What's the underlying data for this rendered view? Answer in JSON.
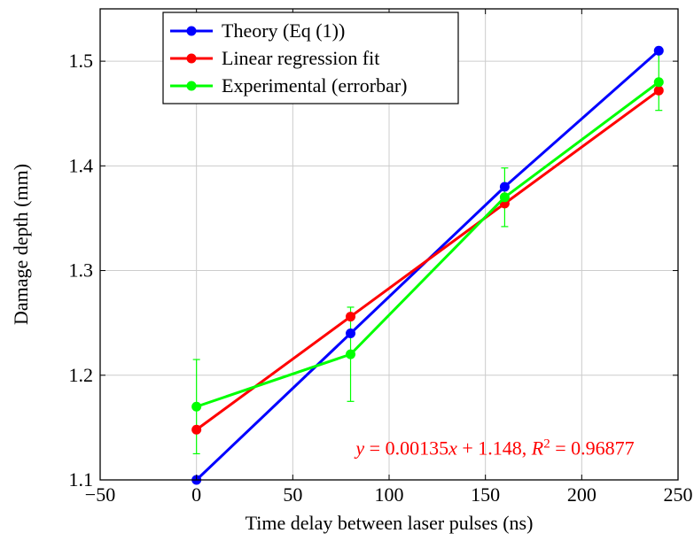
{
  "chart_data": {
    "type": "line",
    "xlabel": "Time delay between laser pulses (ns)",
    "ylabel": "Damage depth (mm)",
    "xlim": [
      -50,
      250
    ],
    "ylim": [
      1.1,
      1.55
    ],
    "xticks": [
      -50,
      0,
      50,
      100,
      150,
      200,
      250
    ],
    "yticks": [
      1.1,
      1.2,
      1.3,
      1.4,
      1.5
    ],
    "xtick_labels": [
      "−50",
      "0",
      "50",
      "100",
      "150",
      "200",
      "250"
    ],
    "ytick_labels": [
      "1.1",
      "1.2",
      "1.3",
      "1.4",
      "1.5"
    ],
    "grid": true,
    "legend_position": "top-left",
    "series": [
      {
        "name": "Theory (Eq (1))",
        "color": "#0000ff",
        "x": [
          0,
          80,
          160,
          240
        ],
        "y": [
          1.1,
          1.24,
          1.38,
          1.51
        ]
      },
      {
        "name": "Linear regression fit",
        "color": "#ff0000",
        "x": [
          0,
          80,
          160,
          240
        ],
        "y": [
          1.148,
          1.256,
          1.364,
          1.472
        ]
      },
      {
        "name": "Experimental (errorbar)",
        "color": "#00ff00",
        "x": [
          0,
          80,
          160,
          240
        ],
        "y": [
          1.17,
          1.22,
          1.37,
          1.48
        ],
        "err": [
          0.045,
          0.045,
          0.028,
          0.027
        ]
      }
    ],
    "annotations": [
      {
        "text_html": "<tspan font-style=\"italic\">y</tspan> = 0.00135<tspan font-style=\"italic\">x</tspan> + 1.148, <tspan font-style=\"italic\">R</tspan><tspan baseline-shift=\"super\" font-size=\"15\">2</tspan> = 0.96877",
        "text": "y = 0.00135x + 1.148, R2 = 0.96877",
        "color": "#ff0000",
        "x": 155,
        "y": 1.13
      }
    ]
  }
}
